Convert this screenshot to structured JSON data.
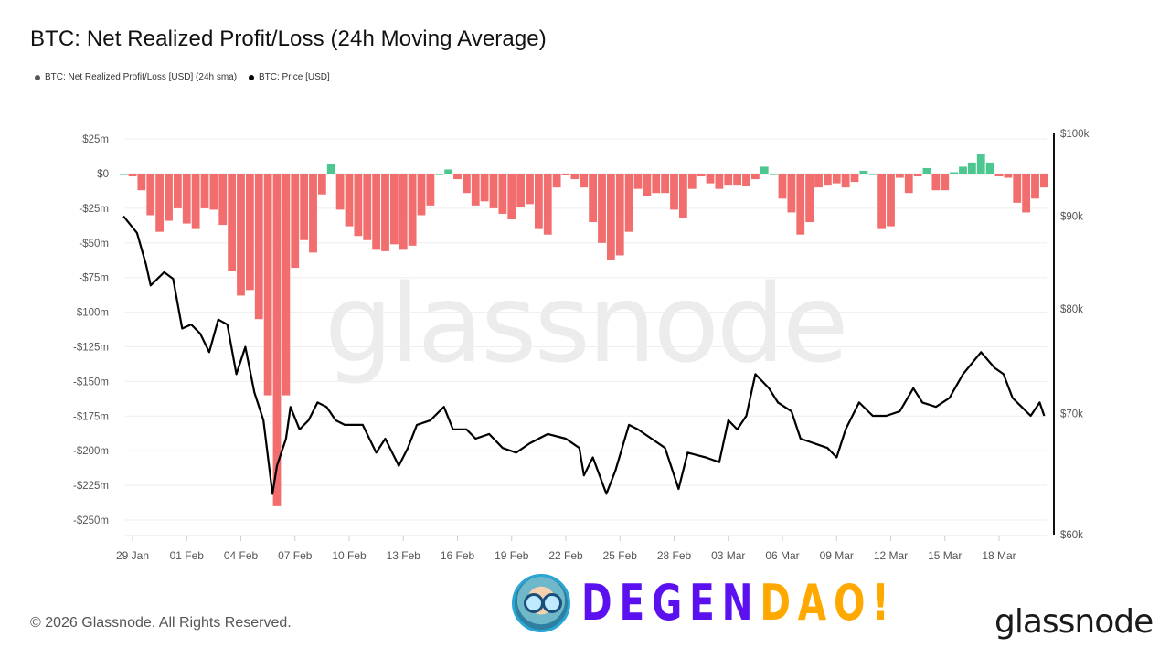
{
  "title": "BTC: Net Realized Profit/Loss (24h Moving Average)",
  "footer": "© 2026 Glassnode. All Rights Reserved.",
  "watermark": "glassnode",
  "brand_logo": "glassnode",
  "overlay_logo": {
    "part1": "DEGEN",
    "part2": "DAO!",
    "color1": "#5b10f0",
    "color2": "#ffa800"
  },
  "colors": {
    "profit": "#4cc790",
    "loss": "#f26d6d",
    "price": "#000000",
    "grid": "#eeeeee"
  },
  "chart_data": {
    "type": "bar+line",
    "title": "BTC: Net Realized Profit/Loss (24h Moving Average)",
    "legend": {
      "placement": "top-left",
      "entries": [
        "BTC: Net Realized Profit/Loss [USD] (24h sma)",
        "BTC: Price [USD]"
      ]
    },
    "grid": true,
    "x_ticks": [
      "29 Jan",
      "01 Feb",
      "04 Feb",
      "07 Feb",
      "10 Feb",
      "13 Feb",
      "16 Feb",
      "19 Feb",
      "22 Feb",
      "25 Feb",
      "28 Feb",
      "03 Mar",
      "06 Mar",
      "09 Mar",
      "12 Mar",
      "15 Mar",
      "18 Mar"
    ],
    "y_left": {
      "scale": "linear",
      "unit": "USD millions",
      "range": [
        -250,
        25
      ],
      "ticks": [
        {
          "label": "$25m",
          "value": 25
        },
        {
          "label": "$0",
          "value": 0
        },
        {
          "label": "-$25m",
          "value": -25
        },
        {
          "label": "-$50m",
          "value": -50
        },
        {
          "label": "-$75m",
          "value": -75
        },
        {
          "label": "-$100m",
          "value": -100
        },
        {
          "label": "-$125m",
          "value": -125
        },
        {
          "label": "-$150m",
          "value": -150
        },
        {
          "label": "-$175m",
          "value": -175
        },
        {
          "label": "-$200m",
          "value": -200
        },
        {
          "label": "-$225m",
          "value": -225
        },
        {
          "label": "-$250m",
          "value": -250
        }
      ]
    },
    "y_right": {
      "scale": "log",
      "unit": "USD",
      "range": [
        60000,
        100000
      ],
      "ticks": [
        {
          "label": "$100k",
          "value": 100000
        },
        {
          "label": "$90k",
          "value": 90000
        },
        {
          "label": "$80k",
          "value": 80000
        },
        {
          "label": "$70k",
          "value": 70000
        },
        {
          "label": "$60k",
          "value": 60000
        }
      ]
    },
    "series": [
      {
        "name": "BTC: Net Realized Profit/Loss [USD] (24h sma)",
        "type": "bar",
        "axis": "left",
        "unit": "USD millions",
        "x": [
          "2026-01-28T12:00",
          "2026-01-29T00:00",
          "2026-01-29T12:00",
          "2026-01-30T00:00",
          "2026-01-30T12:00",
          "2026-01-31T00:00",
          "2026-01-31T12:00",
          "2026-02-01T00:00",
          "2026-02-01T12:00",
          "2026-02-02T00:00",
          "2026-02-02T12:00",
          "2026-02-03T00:00",
          "2026-02-03T12:00",
          "2026-02-04T00:00",
          "2026-02-04T12:00",
          "2026-02-05T00:00",
          "2026-02-05T12:00",
          "2026-02-06T00:00",
          "2026-02-06T12:00",
          "2026-02-07T00:00",
          "2026-02-07T12:00",
          "2026-02-08T00:00",
          "2026-02-08T12:00",
          "2026-02-09T00:00",
          "2026-02-09T12:00",
          "2026-02-10T00:00",
          "2026-02-10T12:00",
          "2026-02-11T00:00",
          "2026-02-11T12:00",
          "2026-02-12T00:00",
          "2026-02-12T12:00",
          "2026-02-13T00:00",
          "2026-02-13T12:00",
          "2026-02-14T00:00",
          "2026-02-14T12:00",
          "2026-02-15T00:00",
          "2026-02-15T12:00",
          "2026-02-16T00:00",
          "2026-02-16T12:00",
          "2026-02-17T00:00",
          "2026-02-17T12:00",
          "2026-02-18T00:00",
          "2026-02-18T12:00",
          "2026-02-19T00:00",
          "2026-02-19T12:00",
          "2026-02-20T00:00",
          "2026-02-20T12:00",
          "2026-02-21T00:00",
          "2026-02-21T12:00",
          "2026-02-22T00:00",
          "2026-02-22T12:00",
          "2026-02-23T00:00",
          "2026-02-23T12:00",
          "2026-02-24T00:00",
          "2026-02-24T12:00",
          "2026-02-25T00:00",
          "2026-02-25T12:00",
          "2026-02-26T00:00",
          "2026-02-26T12:00",
          "2026-02-27T00:00",
          "2026-02-27T12:00",
          "2026-02-28T00:00",
          "2026-02-28T12:00",
          "2026-03-01T00:00",
          "2026-03-01T12:00",
          "2026-03-02T00:00",
          "2026-03-02T12:00",
          "2026-03-03T00:00",
          "2026-03-03T12:00",
          "2026-03-04T00:00",
          "2026-03-04T12:00",
          "2026-03-05T00:00",
          "2026-03-05T12:00",
          "2026-03-06T00:00",
          "2026-03-06T12:00",
          "2026-03-07T00:00",
          "2026-03-07T12:00",
          "2026-03-08T00:00",
          "2026-03-08T12:00",
          "2026-03-09T00:00",
          "2026-03-09T12:00",
          "2026-03-10T00:00",
          "2026-03-10T12:00",
          "2026-03-11T00:00",
          "2026-03-11T12:00",
          "2026-03-12T00:00",
          "2026-03-12T12:00",
          "2026-03-13T00:00",
          "2026-03-13T12:00",
          "2026-03-14T00:00",
          "2026-03-14T12:00",
          "2026-03-15T00:00",
          "2026-03-15T12:00",
          "2026-03-16T00:00",
          "2026-03-16T12:00",
          "2026-03-17T00:00",
          "2026-03-17T12:00",
          "2026-03-18T00:00",
          "2026-03-18T12:00",
          "2026-03-19T00:00",
          "2026-03-19T12:00",
          "2026-03-20T00:00",
          "2026-03-20T12:00"
        ],
        "values": [
          0,
          -2,
          -12,
          -30,
          -42,
          -34,
          -25,
          -36,
          -40,
          -25,
          -26,
          -37,
          -70,
          -88,
          -84,
          -105,
          -160,
          -240,
          -160,
          -68,
          -48,
          -57,
          -15,
          7,
          -26,
          -38,
          -45,
          -48,
          -55,
          -56,
          -51,
          -55,
          -52,
          -30,
          -23,
          0,
          3,
          -4,
          -14,
          -23,
          -20,
          -25,
          -29,
          -33,
          -24,
          -22,
          -40,
          -44,
          -10,
          -1,
          -4,
          -10,
          -35,
          -50,
          -62,
          -59,
          -42,
          -11,
          -16,
          -14,
          -14,
          -26,
          -32,
          -11,
          -2,
          -7,
          -11,
          -8,
          -8,
          -9,
          -4,
          5,
          0,
          -18,
          -28,
          -44,
          -35,
          -10,
          -8,
          -7,
          -10,
          -6,
          2,
          0,
          -40,
          -38,
          -3,
          -14,
          -2,
          4,
          -12,
          -12,
          1,
          5,
          8,
          14,
          8,
          -2,
          -3,
          -21,
          -28,
          -18,
          -10
        ]
      },
      {
        "name": "BTC: Price [USD]",
        "type": "line",
        "axis": "right",
        "unit": "USD thousands",
        "x": [
          "2026-01-28T12:00",
          "2026-01-29T06:00",
          "2026-01-29T18:00",
          "2026-01-30T00:00",
          "2026-01-30T18:00",
          "2026-01-31T06:00",
          "2026-01-31T18:00",
          "2026-02-01T06:00",
          "2026-02-01T18:00",
          "2026-02-02T06:00",
          "2026-02-02T18:00",
          "2026-02-03T06:00",
          "2026-02-03T18:00",
          "2026-02-04T06:00",
          "2026-02-04T18:00",
          "2026-02-05T06:00",
          "2026-02-05T18:00",
          "2026-02-06T00:00",
          "2026-02-06T12:00",
          "2026-02-06T18:00",
          "2026-02-07T06:00",
          "2026-02-07T18:00",
          "2026-02-08T06:00",
          "2026-02-08T18:00",
          "2026-02-09T06:00",
          "2026-02-09T18:00",
          "2026-02-10T18:00",
          "2026-02-11T12:00",
          "2026-02-12T00:00",
          "2026-02-12T18:00",
          "2026-02-13T06:00",
          "2026-02-13T18:00",
          "2026-02-14T12:00",
          "2026-02-15T06:00",
          "2026-02-15T18:00",
          "2026-02-16T12:00",
          "2026-02-17T00:00",
          "2026-02-17T18:00",
          "2026-02-18T12:00",
          "2026-02-19T06:00",
          "2026-02-20T00:00",
          "2026-02-21T00:00",
          "2026-02-22T00:00",
          "2026-02-22T18:00",
          "2026-02-23T00:00",
          "2026-02-23T12:00",
          "2026-02-24T06:00",
          "2026-02-24T18:00",
          "2026-02-25T12:00",
          "2026-02-26T00:00",
          "2026-02-26T18:00",
          "2026-02-27T12:00",
          "2026-02-28T06:00",
          "2026-02-28T18:00",
          "2026-03-01T18:00",
          "2026-03-02T12:00",
          "2026-03-03T00:00",
          "2026-03-03T12:00",
          "2026-03-04T00:00",
          "2026-03-04T12:00",
          "2026-03-05T06:00",
          "2026-03-05T18:00",
          "2026-03-06T12:00",
          "2026-03-07T00:00",
          "2026-03-07T18:00",
          "2026-03-08T12:00",
          "2026-03-09T00:00",
          "2026-03-09T12:00",
          "2026-03-10T06:00",
          "2026-03-11T00:00",
          "2026-03-11T18:00",
          "2026-03-12T12:00",
          "2026-03-13T06:00",
          "2026-03-13T18:00",
          "2026-03-14T12:00",
          "2026-03-15T06:00",
          "2026-03-16T00:00",
          "2026-03-17T00:00",
          "2026-03-17T18:00",
          "2026-03-18T06:00",
          "2026-03-18T18:00",
          "2026-03-19T06:00",
          "2026-03-19T18:00",
          "2026-03-20T06:00",
          "2026-03-20T12:00"
        ],
        "values": [
          90.0,
          88.1,
          84.6,
          82.4,
          83.8,
          83.1,
          78.0,
          78.4,
          77.5,
          75.7,
          78.9,
          78.4,
          73.6,
          76.2,
          71.9,
          69.4,
          63.2,
          65.5,
          67.8,
          70.6,
          68.6,
          69.4,
          71.0,
          70.6,
          69.4,
          69.0,
          69.0,
          66.6,
          67.8,
          65.5,
          67.0,
          69.0,
          69.4,
          70.6,
          68.6,
          68.6,
          67.8,
          68.2,
          67.0,
          66.6,
          67.4,
          68.2,
          67.8,
          67.0,
          64.7,
          66.2,
          63.2,
          65.1,
          69.0,
          68.6,
          67.8,
          67.0,
          63.6,
          66.6,
          66.2,
          65.8,
          69.4,
          68.6,
          69.8,
          73.6,
          72.3,
          71.0,
          70.2,
          67.8,
          67.4,
          67.0,
          66.2,
          68.6,
          71.0,
          69.8,
          69.8,
          70.2,
          72.3,
          71.0,
          70.6,
          71.4,
          73.6,
          75.7,
          74.2,
          73.6,
          71.4,
          70.6,
          69.8,
          71.0,
          69.8
        ]
      }
    ]
  }
}
